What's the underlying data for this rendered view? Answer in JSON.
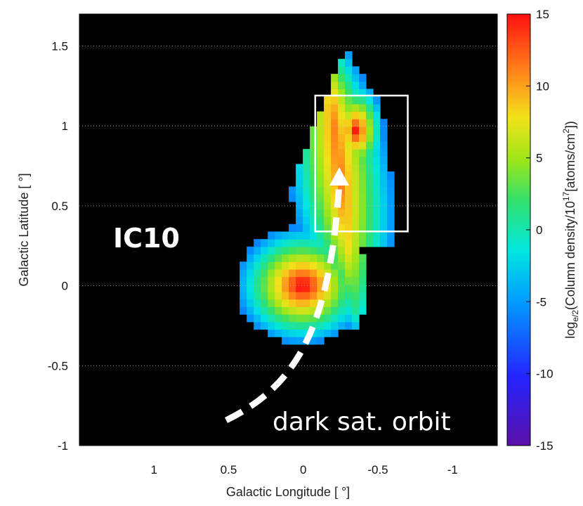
{
  "chart_data": {
    "type": "heatmap",
    "xlabel": "Galactic Longitude [ °]",
    "ylabel": "Galactic Latitude [ °]",
    "colorbar_label": "log",
    "colorbar_label_sub": "e/2",
    "colorbar_label_rest": "(Column density/10",
    "colorbar_label_sup": "17",
    "colorbar_label_end": "[atoms/cm",
    "colorbar_label_sup2": "2",
    "colorbar_label_close": "])",
    "xlim": [
      1.5,
      -1.3
    ],
    "ylim": [
      -1.0,
      1.7
    ],
    "x_axis_reversed": true,
    "clim": [
      -15,
      15
    ],
    "background": "#000000",
    "x_ticks": [
      1,
      0.5,
      0,
      -0.5,
      -1
    ],
    "x_tick_labels": [
      "1",
      "0.5",
      "0",
      "-0.5",
      "-1"
    ],
    "y_ticks": [
      -1,
      -0.5,
      0,
      0.5,
      1,
      1.5
    ],
    "y_tick_labels": [
      "-1",
      "-0.5",
      "0",
      "0.5",
      "1",
      "1.5"
    ],
    "colorbar_ticks": [
      -15,
      -10,
      -5,
      0,
      5,
      10,
      15
    ],
    "colorbar_tick_labels": [
      "-15",
      "-10",
      "-5",
      "0",
      "5",
      "10",
      "15"
    ],
    "grid": true,
    "annotations": {
      "galaxy_label": "IC10",
      "orbit_label": "dark sat. orbit"
    },
    "highlight_box": {
      "l_range": [
        -0.7,
        -0.08
      ],
      "b_range": [
        0.34,
        1.19
      ]
    }
  }
}
